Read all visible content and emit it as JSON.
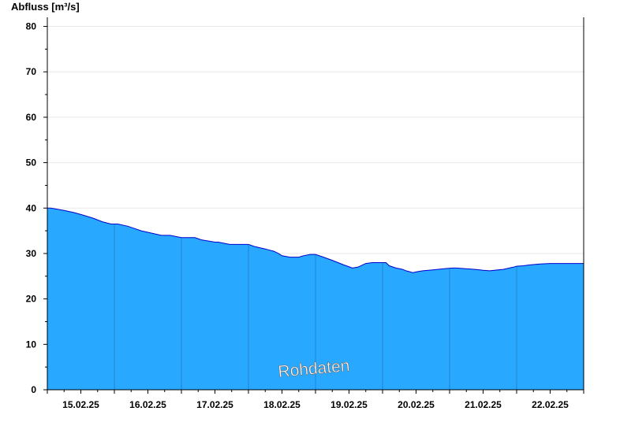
{
  "chart_data": {
    "type": "area",
    "ylabel": "Abfluss [m³/s]",
    "xlabel": "",
    "title": "",
    "ylim": [
      0,
      82
    ],
    "yticks": [
      0,
      10,
      20,
      30,
      40,
      50,
      60,
      70,
      80
    ],
    "x_tick_labels": [
      "15.02.25",
      "16.02.25",
      "17.02.25",
      "18.02.25",
      "19.02.25",
      "20.02.25",
      "21.02.25",
      "22.02.25"
    ],
    "x_unit": "days since 14.02.25 12:00",
    "x_range": [
      0,
      8
    ],
    "grid": "horizontal",
    "watermark": "Rohdaten",
    "fill_color": "#29a8ff",
    "line_color": "#0000cc",
    "series": [
      {
        "x": [
          0,
          0.05,
          0.25,
          0.4,
          0.52,
          0.68,
          0.82,
          0.95,
          1.05,
          1.2,
          1.3,
          1.4,
          1.55,
          1.7,
          1.83,
          2.0,
          2.1,
          2.15,
          2.2,
          2.3,
          2.5,
          2.55,
          2.72,
          2.88,
          3.0,
          3.1,
          3.25,
          3.3,
          3.38,
          3.45,
          3.5,
          3.62,
          3.75,
          3.82,
          3.92,
          4.0,
          4.1,
          4.25,
          4.42,
          4.55,
          4.63,
          4.75,
          4.85,
          4.98,
          5.05,
          5.1,
          5.2,
          5.3,
          5.35,
          5.4,
          5.45,
          5.52,
          5.6,
          5.75,
          5.82,
          5.95,
          6.05,
          6.1,
          6.2,
          6.38,
          6.45,
          6.5,
          6.6,
          6.8,
          6.95,
          7.0,
          7.1,
          7.2,
          7.35,
          7.5,
          7.75,
          8.0
        ],
        "y": [
          40.0,
          40.0,
          39.5,
          39.0,
          38.5,
          37.8,
          37.0,
          36.5,
          36.5,
          36.0,
          35.5,
          35.0,
          34.5,
          34.0,
          34.0,
          33.5,
          33.5,
          33.5,
          33.5,
          33.0,
          32.5,
          32.5,
          32.0,
          32.0,
          32.0,
          31.5,
          31.0,
          30.8,
          30.5,
          30.0,
          29.5,
          29.2,
          29.2,
          29.5,
          29.8,
          29.8,
          29.3,
          28.5,
          27.5,
          26.8,
          27.0,
          27.8,
          28.0,
          28.0,
          28.0,
          27.3,
          26.8,
          26.5,
          26.2,
          26.0,
          25.8,
          26.0,
          26.2,
          26.4,
          26.5,
          26.7,
          26.8,
          26.8,
          26.7,
          26.5,
          26.4,
          26.3,
          26.2,
          26.5,
          27.0,
          27.2,
          27.3,
          27.5,
          27.7,
          27.8,
          27.8,
          27.8
        ]
      }
    ]
  }
}
